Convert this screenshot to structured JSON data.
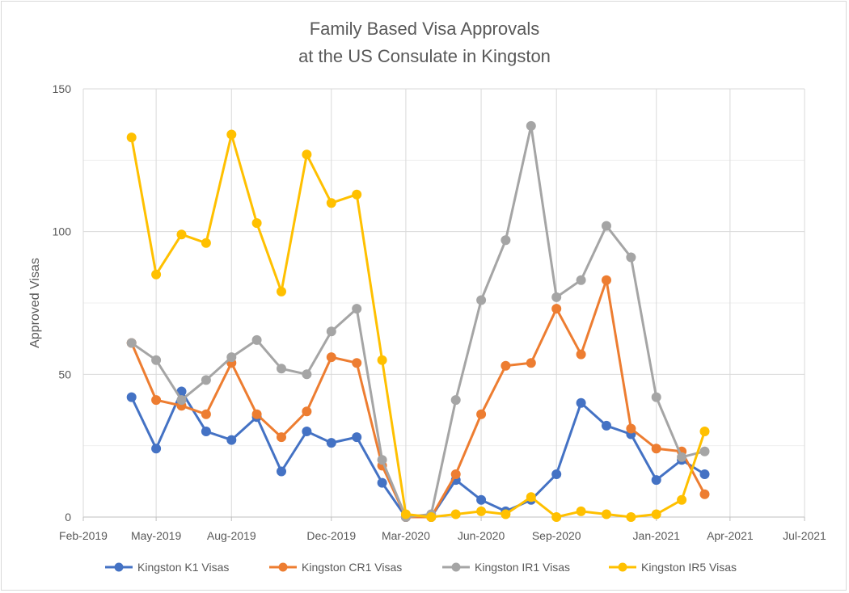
{
  "chart_data": {
    "type": "line",
    "title": [
      "Family Based Visa Approvals",
      "at the US Consulate in Kingston"
    ],
    "xlabel": "",
    "ylabel": "Approved Visas",
    "ylim": [
      0,
      150
    ],
    "yticks": [
      0,
      50,
      100,
      150
    ],
    "xlim": [
      "2019-02-01",
      "2021-07-01"
    ],
    "xticks": [
      {
        "date": "2019-02-01",
        "label": "Feb-2019"
      },
      {
        "date": "2019-05-01",
        "label": "May-2019"
      },
      {
        "date": "2019-08-01",
        "label": "Aug-2019"
      },
      {
        "date": "2019-12-01",
        "label": "Dec-2019"
      },
      {
        "date": "2020-03-01",
        "label": "Mar-2020"
      },
      {
        "date": "2020-06-01",
        "label": "Jun-2020"
      },
      {
        "date": "2020-09-01",
        "label": "Sep-2020"
      },
      {
        "date": "2021-01-01",
        "label": "Jan-2021"
      },
      {
        "date": "2021-04-01",
        "label": "Apr-2021"
      },
      {
        "date": "2021-07-01",
        "label": "Jul-2021"
      }
    ],
    "grid": true,
    "legend_position": "bottom",
    "x": [
      "2019-04-01",
      "2019-05-01",
      "2019-06-01",
      "2019-07-01",
      "2019-08-01",
      "2019-09-01",
      "2019-10-01",
      "2019-11-01",
      "2019-12-01",
      "2020-01-01",
      "2020-02-01",
      "2020-03-01",
      "2020-04-01",
      "2020-05-01",
      "2020-06-01",
      "2020-07-01",
      "2020-08-01",
      "2020-09-01",
      "2020-10-01",
      "2020-11-01",
      "2020-12-01",
      "2021-01-01",
      "2021-02-01",
      "2021-03-01"
    ],
    "series": [
      {
        "name": "Kingston K1 Visas",
        "color": "#4472C4",
        "values": [
          42,
          24,
          44,
          30,
          27,
          35,
          16,
          30,
          26,
          28,
          12,
          0,
          0,
          13,
          6,
          2,
          6,
          15,
          40,
          32,
          29,
          13,
          20,
          15
        ]
      },
      {
        "name": "Kingston CR1 Visas",
        "color": "#ED7D31",
        "values": [
          61,
          41,
          39,
          36,
          54,
          36,
          28,
          37,
          56,
          54,
          18,
          0,
          0,
          15,
          36,
          53,
          54,
          73,
          57,
          83,
          31,
          24,
          23,
          8
        ]
      },
      {
        "name": "Kingston IR1 Visas",
        "color": "#A5A5A5",
        "values": [
          61,
          55,
          41,
          48,
          56,
          62,
          52,
          50,
          65,
          73,
          20,
          0,
          1,
          41,
          76,
          97,
          137,
          77,
          83,
          102,
          91,
          42,
          21,
          23
        ]
      },
      {
        "name": "Kingston IR5 Visas",
        "color": "#FFC000",
        "values": [
          133,
          85,
          99,
          96,
          134,
          103,
          79,
          127,
          110,
          113,
          55,
          1,
          0,
          1,
          2,
          1,
          7,
          0,
          2,
          1,
          0,
          1,
          6,
          30
        ]
      }
    ]
  }
}
